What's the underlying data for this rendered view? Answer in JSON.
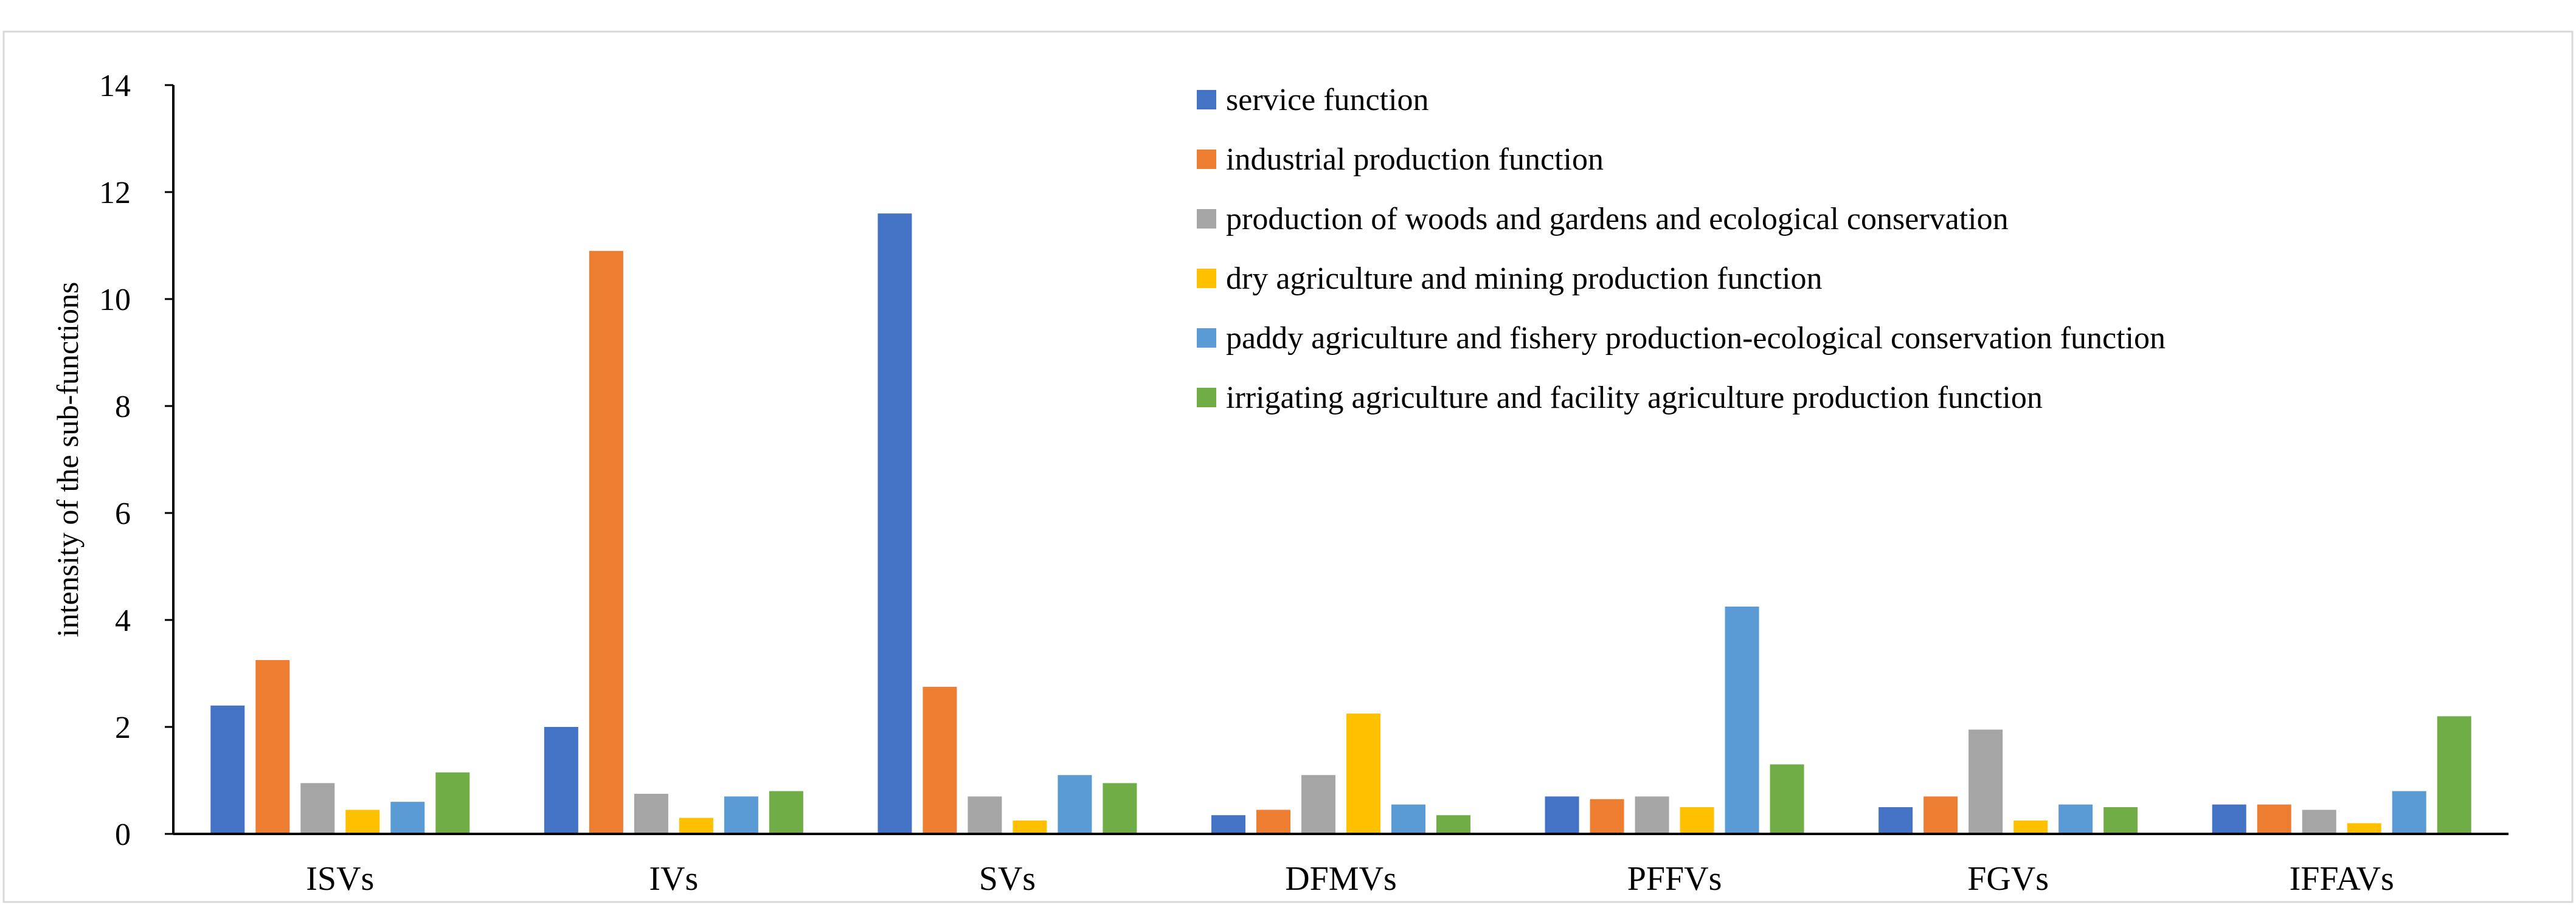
{
  "chart_data": {
    "type": "bar",
    "title": "",
    "xlabel": "",
    "ylabel": "intensity of the sub-functions",
    "ylim": [
      0,
      14
    ],
    "yticks": [
      0,
      2,
      4,
      6,
      8,
      10,
      12,
      14
    ],
    "grid": false,
    "legend_position": "top-right",
    "categories": [
      "ISVs",
      "IVs",
      "SVs",
      "DFMVs",
      "PFFVs",
      "FGVs",
      "IFFAVs"
    ],
    "series": [
      {
        "name": "service function",
        "color": "#4472C4",
        "values": [
          2.4,
          2.0,
          11.6,
          0.35,
          0.7,
          0.5,
          0.55
        ]
      },
      {
        "name": "industrial production function",
        "color": "#ED7D31",
        "values": [
          3.25,
          10.9,
          2.75,
          0.45,
          0.65,
          0.7,
          0.55
        ]
      },
      {
        "name": "production of woods and gardens and ecological conservation",
        "color": "#A5A5A5",
        "values": [
          0.95,
          0.75,
          0.7,
          1.1,
          0.7,
          1.95,
          0.45
        ]
      },
      {
        "name": "dry agriculture and mining production function",
        "color": "#FFC000",
        "values": [
          0.45,
          0.3,
          0.25,
          2.25,
          0.5,
          0.25,
          0.2
        ]
      },
      {
        "name": "paddy agriculture and fishery production-ecological conservation function",
        "color": "#5B9BD5",
        "values": [
          0.6,
          0.7,
          1.1,
          0.55,
          4.25,
          0.55,
          0.8
        ]
      },
      {
        "name": "irrigating agriculture and facility agriculture production function",
        "color": "#70AD47",
        "values": [
          1.15,
          0.8,
          0.95,
          0.35,
          1.3,
          0.5,
          2.2
        ]
      }
    ]
  }
}
